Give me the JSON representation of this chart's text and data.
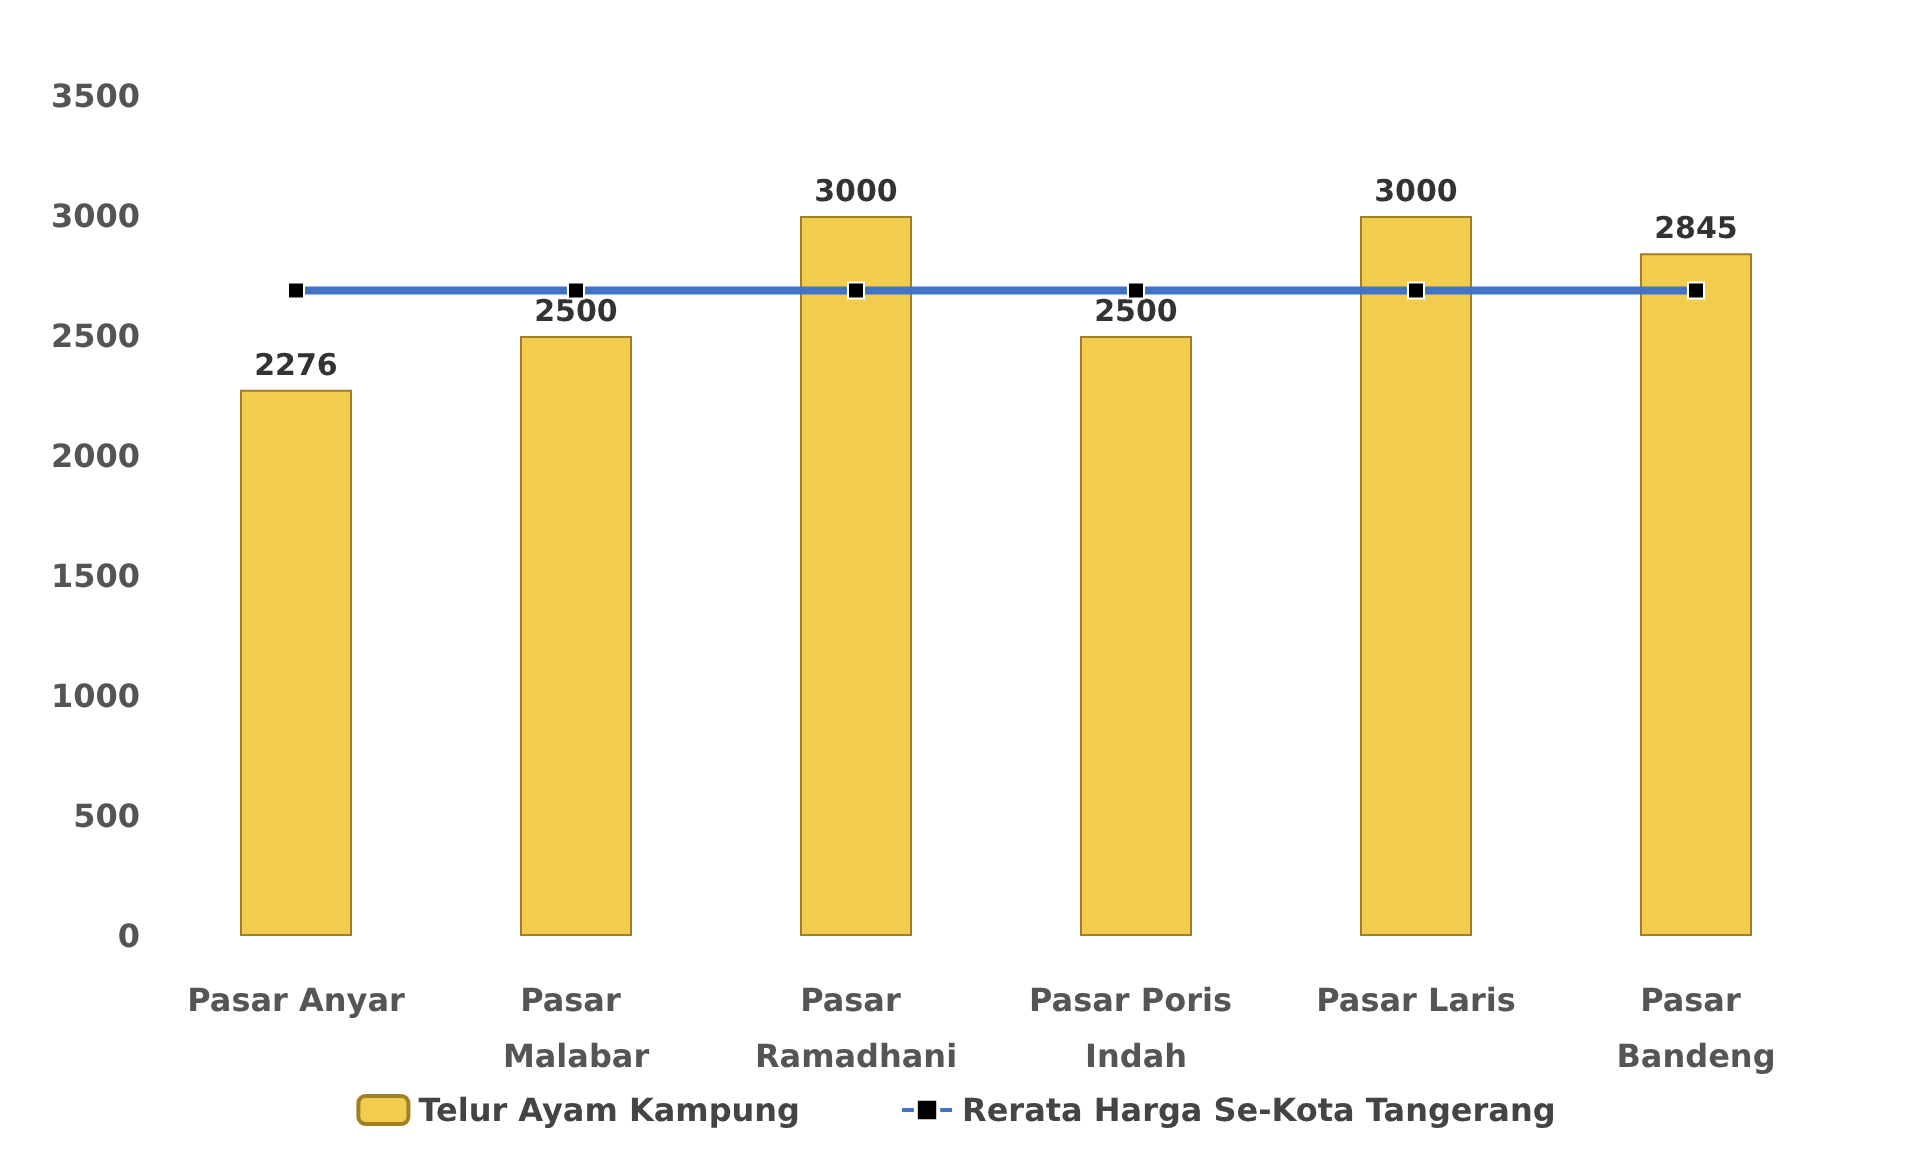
{
  "chart_data": {
    "type": "bar",
    "categories": [
      "Pasar Anyar",
      "Pasar Malabar",
      "Pasar Ramadhani",
      "Pasar Poris Indah",
      "Pasar Laris",
      "Pasar Bandeng"
    ],
    "series": [
      {
        "name": "Telur Ayam Kampung",
        "color": "#f2cc4f",
        "values": [
          2276,
          2500,
          3000,
          2500,
          3000,
          2845
        ],
        "value_labels": [
          "2276",
          "2500",
          "3000",
          "2500",
          "3000",
          "2845"
        ]
      },
      {
        "name": "Rerata Harga Se-Kota Tangerang",
        "type": "line",
        "color": "#4472c4",
        "values": [
          2690,
          2690,
          2690,
          2690,
          2690,
          2690
        ],
        "marker": "square"
      }
    ],
    "ylim": [
      0,
      3500
    ],
    "yticks": [
      0,
      500,
      1000,
      1500,
      2000,
      2500,
      3000,
      3500
    ],
    "grid": false,
    "legend": "bottom"
  }
}
